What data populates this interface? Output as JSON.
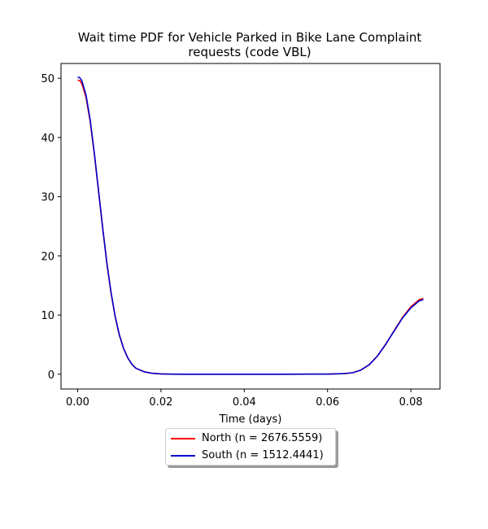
{
  "chart_data": {
    "type": "line",
    "title_lines": [
      "Wait time PDF for Vehicle Parked in Bike Lane Complaint",
      "requests (code VBL)"
    ],
    "xlabel": "Time (days)",
    "ylabel": "",
    "xlim": [
      -0.004,
      0.087
    ],
    "ylim": [
      -2.5,
      52.5
    ],
    "xticks": [
      0.0,
      0.02,
      0.04,
      0.06,
      0.08
    ],
    "xtick_labels": [
      "0.00",
      "0.02",
      "0.04",
      "0.06",
      "0.08"
    ],
    "yticks": [
      0,
      10,
      20,
      30,
      40,
      50
    ],
    "ytick_labels": [
      "0",
      "10",
      "20",
      "30",
      "40",
      "50"
    ],
    "grid": false,
    "legend_position": "below plot, centered",
    "series": [
      {
        "name": "North (n = 2676.5559)",
        "color": "#ff0000",
        "x": [
          0.0,
          0.0005,
          0.001,
          0.002,
          0.003,
          0.004,
          0.005,
          0.006,
          0.007,
          0.008,
          0.009,
          0.01,
          0.011,
          0.012,
          0.013,
          0.014,
          0.016,
          0.018,
          0.02,
          0.022,
          0.025,
          0.03,
          0.04,
          0.05,
          0.06,
          0.064,
          0.066,
          0.068,
          0.07,
          0.072,
          0.074,
          0.076,
          0.078,
          0.08,
          0.082,
          0.083
        ],
        "y": [
          49.7,
          49.6,
          49.1,
          46.8,
          42.7,
          37.2,
          31.0,
          24.7,
          18.8,
          13.8,
          9.7,
          6.6,
          4.4,
          2.8,
          1.7,
          1.0,
          0.4,
          0.15,
          0.05,
          0.02,
          0.0,
          0.0,
          0.0,
          0.0,
          0.02,
          0.1,
          0.25,
          0.7,
          1.6,
          3.1,
          5.1,
          7.4,
          9.6,
          11.4,
          12.6,
          12.8
        ]
      },
      {
        "name": "South (n = 1512.4441)",
        "color": "#0000cc",
        "x": [
          0.0,
          0.0005,
          0.001,
          0.002,
          0.003,
          0.004,
          0.005,
          0.006,
          0.007,
          0.008,
          0.009,
          0.01,
          0.011,
          0.012,
          0.013,
          0.014,
          0.016,
          0.018,
          0.02,
          0.022,
          0.025,
          0.03,
          0.04,
          0.05,
          0.06,
          0.064,
          0.066,
          0.068,
          0.07,
          0.072,
          0.074,
          0.076,
          0.078,
          0.08,
          0.082,
          0.083
        ],
        "y": [
          50.2,
          50.1,
          49.6,
          47.2,
          43.0,
          37.4,
          31.1,
          24.8,
          18.9,
          13.9,
          9.8,
          6.7,
          4.4,
          2.8,
          1.7,
          1.0,
          0.4,
          0.15,
          0.05,
          0.02,
          0.0,
          0.0,
          0.0,
          0.0,
          0.02,
          0.1,
          0.25,
          0.7,
          1.6,
          3.1,
          5.1,
          7.3,
          9.5,
          11.2,
          12.4,
          12.6
        ]
      }
    ]
  }
}
